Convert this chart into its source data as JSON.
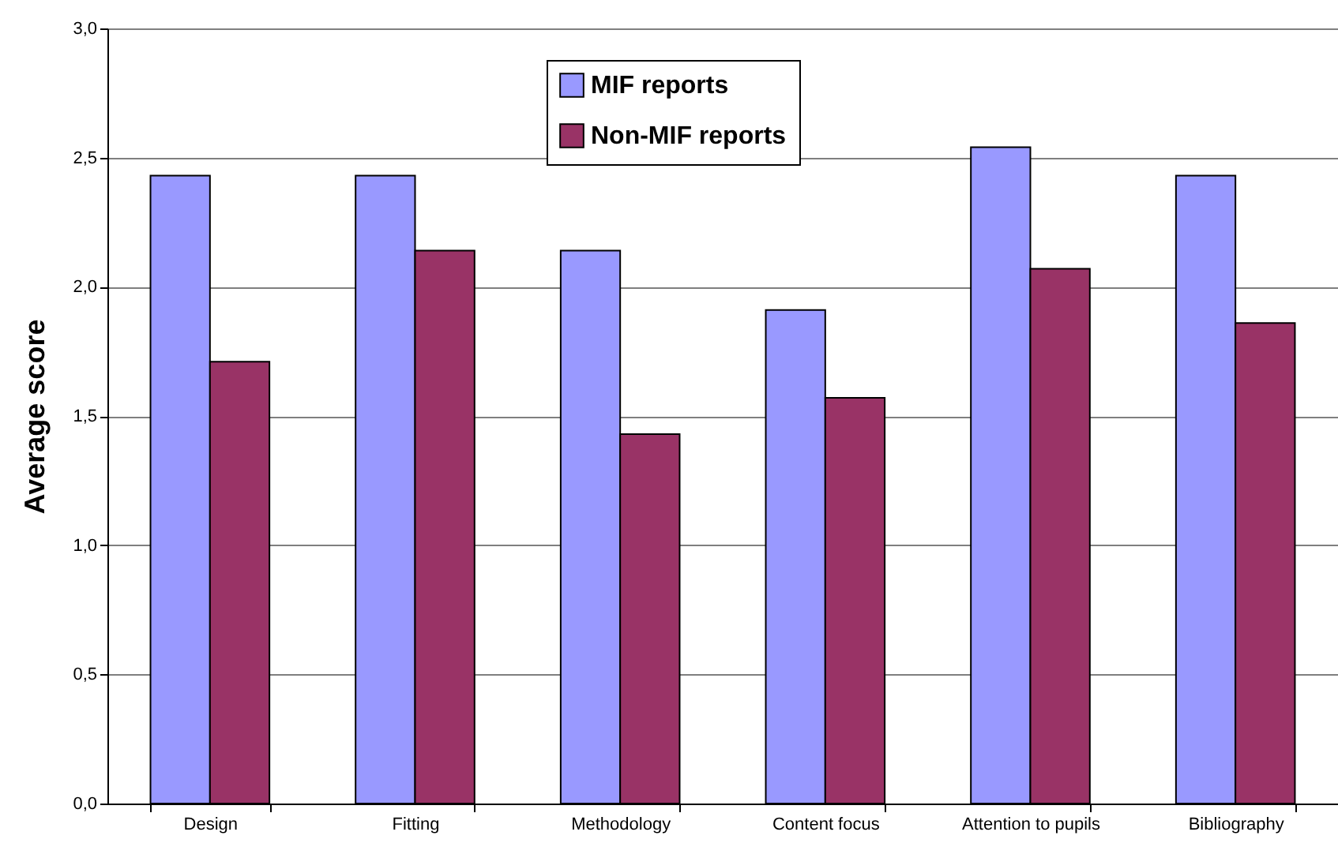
{
  "chart_data": {
    "type": "bar",
    "ylabel": "Average score",
    "categories": [
      "Design",
      "Fitting",
      "Methodology",
      "Content focus",
      "Attention to pupils",
      "Bibliography"
    ],
    "series": [
      {
        "name": "MIF reports",
        "color": "#9999ff",
        "values": [
          2.43,
          2.43,
          2.14,
          1.91,
          2.54,
          2.43
        ]
      },
      {
        "name": "Non-MIF reports",
        "color": "#993366",
        "values": [
          1.71,
          2.14,
          1.43,
          1.57,
          2.07,
          1.86
        ]
      }
    ],
    "ylim": [
      0,
      3
    ],
    "yticks": [
      {
        "value": 0,
        "label": "0,0"
      },
      {
        "value": 0.5,
        "label": "0,5"
      },
      {
        "value": 1,
        "label": "1,0"
      },
      {
        "value": 1.5,
        "label": "1,5"
      },
      {
        "value": 2,
        "label": "2,0"
      },
      {
        "value": 2.5,
        "label": "2,5"
      },
      {
        "value": 3,
        "label": "3,0"
      }
    ],
    "grid": "y",
    "legend": "top"
  }
}
